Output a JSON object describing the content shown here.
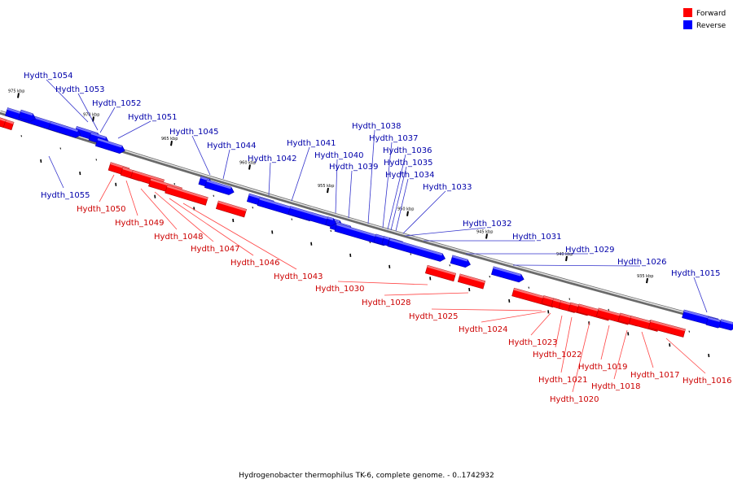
{
  "caption": "Hydrogenobacter thermophilus TK-6, complete genome. - 0..1742932",
  "legend": {
    "forward": {
      "label": "Forward",
      "color": "#ff0000"
    },
    "reverse": {
      "label": "Reverse",
      "color": "#0000ff"
    }
  },
  "colors": {
    "forward_label": "#cc0000",
    "reverse_label": "#0000aa",
    "backbone": "#777777"
  },
  "ticks": [
    "975 kbp",
    "970 kbp",
    "965 kbp",
    "960 kbp",
    "955 kbp",
    "950 kbp",
    "945 kbp",
    "940 kbp",
    "935 kbp"
  ],
  "genes": [
    {
      "id": "Hydth_1054",
      "strand": "reverse"
    },
    {
      "id": "Hydth_1053",
      "strand": "reverse"
    },
    {
      "id": "Hydth_1052",
      "strand": "reverse"
    },
    {
      "id": "Hydth_1051",
      "strand": "reverse"
    },
    {
      "id": "Hydth_1045",
      "strand": "reverse"
    },
    {
      "id": "Hydth_1044",
      "strand": "reverse"
    },
    {
      "id": "Hydth_1042",
      "strand": "reverse"
    },
    {
      "id": "Hydth_1041",
      "strand": "reverse"
    },
    {
      "id": "Hydth_1040",
      "strand": "reverse"
    },
    {
      "id": "Hydth_1039",
      "strand": "reverse"
    },
    {
      "id": "Hydth_1038",
      "strand": "reverse"
    },
    {
      "id": "Hydth_1037",
      "strand": "reverse"
    },
    {
      "id": "Hydth_1036",
      "strand": "reverse"
    },
    {
      "id": "Hydth_1035",
      "strand": "reverse"
    },
    {
      "id": "Hydth_1034",
      "strand": "reverse"
    },
    {
      "id": "Hydth_1033",
      "strand": "reverse"
    },
    {
      "id": "Hydth_1032",
      "strand": "reverse"
    },
    {
      "id": "Hydth_1031",
      "strand": "reverse"
    },
    {
      "id": "Hydth_1029",
      "strand": "reverse"
    },
    {
      "id": "Hydth_1026",
      "strand": "reverse"
    },
    {
      "id": "Hydth_1015",
      "strand": "reverse"
    },
    {
      "id": "Hydth_1055",
      "strand": "reverse"
    },
    {
      "id": "Hydth_1050",
      "strand": "forward"
    },
    {
      "id": "Hydth_1049",
      "strand": "forward"
    },
    {
      "id": "Hydth_1048",
      "strand": "forward"
    },
    {
      "id": "Hydth_1047",
      "strand": "forward"
    },
    {
      "id": "Hydth_1046",
      "strand": "forward"
    },
    {
      "id": "Hydth_1043",
      "strand": "forward"
    },
    {
      "id": "Hydth_1030",
      "strand": "forward"
    },
    {
      "id": "Hydth_1028",
      "strand": "forward"
    },
    {
      "id": "Hydth_1025",
      "strand": "forward"
    },
    {
      "id": "Hydth_1024",
      "strand": "forward"
    },
    {
      "id": "Hydth_1023",
      "strand": "forward"
    },
    {
      "id": "Hydth_1022",
      "strand": "forward"
    },
    {
      "id": "Hydth_1021",
      "strand": "forward"
    },
    {
      "id": "Hydth_1020",
      "strand": "forward"
    },
    {
      "id": "Hydth_1019",
      "strand": "forward"
    },
    {
      "id": "Hydth_1018",
      "strand": "forward"
    },
    {
      "id": "Hydth_1017",
      "strand": "forward"
    },
    {
      "id": "Hydth_1016",
      "strand": "forward"
    }
  ]
}
